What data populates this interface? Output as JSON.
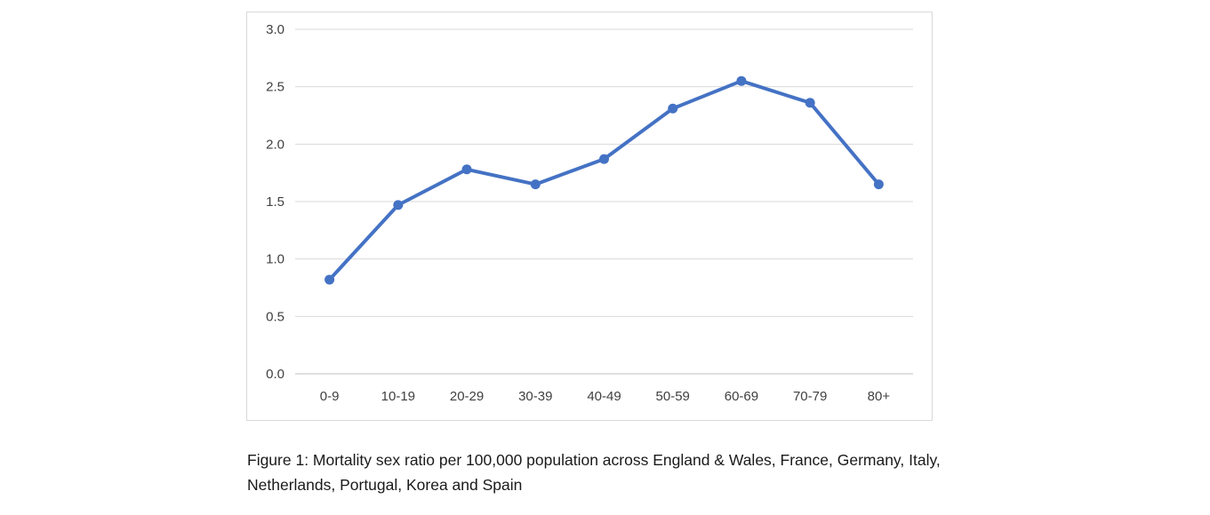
{
  "chart_data": {
    "type": "line",
    "categories": [
      "0-9",
      "10-19",
      "20-29",
      "30-39",
      "40-49",
      "50-59",
      "60-69",
      "70-79",
      "80+"
    ],
    "values": [
      0.82,
      1.47,
      1.78,
      1.65,
      1.87,
      2.31,
      2.55,
      2.36,
      1.65
    ],
    "title": "",
    "xlabel": "",
    "ylabel": "",
    "ylim": [
      0,
      3
    ],
    "ytick_step": 0.5,
    "ytick_labels": [
      "0.0",
      "0.5",
      "1.0",
      "1.5",
      "2.0",
      "2.5",
      "3.0"
    ],
    "line_color": "#4472c4",
    "marker_color": "#4472c4",
    "gridline_color": "#d9d9d9",
    "axis_color": "#bfbfbf",
    "grid": true,
    "legend": "none"
  },
  "caption": {
    "line1": "Figure 1: Mortality sex ratio per 100,000 population across England & Wales, France, Germany, Italy,",
    "line2": "Netherlands, Portugal, Korea and Spain"
  }
}
